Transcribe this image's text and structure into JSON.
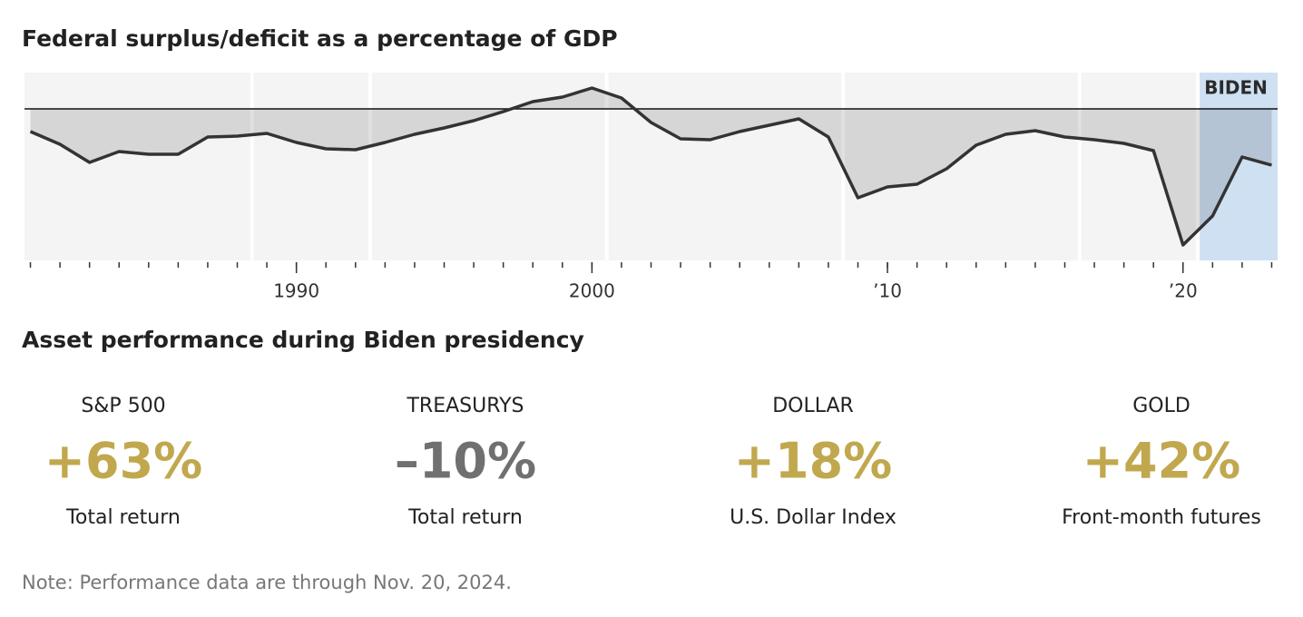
{
  "chart_data": {
    "type": "line",
    "title": "Federal surplus/deficit as a percentage of GDP",
    "x": [
      1981,
      1982,
      1983,
      1984,
      1985,
      1986,
      1987,
      1988,
      1989,
      1990,
      1991,
      1992,
      1993,
      1994,
      1995,
      1996,
      1997,
      1998,
      1999,
      2000,
      2001,
      2002,
      2003,
      2004,
      2005,
      2006,
      2007,
      2008,
      2009,
      2010,
      2011,
      2012,
      2013,
      2014,
      2015,
      2016,
      2017,
      2018,
      2019,
      2020,
      2021,
      2022,
      2023
    ],
    "values": [
      -2.5,
      -3.9,
      -5.9,
      -4.7,
      -5.0,
      -5.0,
      -3.1,
      -3.0,
      -2.7,
      -3.7,
      -4.4,
      -4.5,
      -3.7,
      -2.8,
      -2.1,
      -1.3,
      -0.3,
      0.8,
      1.3,
      2.3,
      1.2,
      -1.5,
      -3.3,
      -3.4,
      -2.5,
      -1.8,
      -1.1,
      -3.1,
      -9.8,
      -8.6,
      -8.3,
      -6.6,
      -4.0,
      -2.8,
      -2.4,
      -3.1,
      -3.4,
      -3.8,
      -4.6,
      -15.0,
      -11.8,
      -5.3,
      -6.2
    ],
    "color": "#333333",
    "area_color": "#000000",
    "area_opacity": 0.12,
    "background": "#f4f4f4",
    "xlim": [
      1980.8,
      2023.2
    ],
    "ylim": [
      -16.7,
      4
    ],
    "xticks": [
      1990,
      2000,
      {
        "value": 2010,
        "label": "’10"
      },
      {
        "value": 2020,
        "label": "’20"
      }
    ],
    "xminor_ticks": [
      1981,
      1982,
      1983,
      1984,
      1985,
      1986,
      1987,
      1988,
      1989,
      1990,
      1991,
      1992,
      1993,
      1994,
      1995,
      1996,
      1997,
      1998,
      1999,
      2000,
      2001,
      2002,
      2003,
      2004,
      2005,
      2006,
      2007,
      2008,
      2009,
      2010,
      2011,
      2012,
      2013,
      2014,
      2015,
      2016,
      2017,
      2018,
      2019,
      2020,
      2021,
      2022,
      2023
    ],
    "term_starts": [
      1988.5,
      1992.5,
      2000.5,
      2008.5,
      2016.5,
      2020.5
    ],
    "highlight": {
      "label": "BIDEN",
      "start": 2020.5,
      "color": "#cfe0f3"
    }
  },
  "panel": {
    "title": "Asset performance during Biden presidency",
    "stats": [
      {
        "label": "S&P 500",
        "value": "+63%",
        "note": "Total return",
        "color": "#c1a84e"
      },
      {
        "label": "TREASURYS",
        "value": "–10%",
        "note": "Total return",
        "color": "#707070"
      },
      {
        "label": "DOLLAR",
        "value": "+18%",
        "note": "U.S. Dollar Index",
        "color": "#c1a84e"
      },
      {
        "label": "GOLD",
        "value": "+42%",
        "note": "Front-month futures",
        "color": "#c1a84e"
      }
    ],
    "note": "Note: Performance data are through Nov. 20, 2024."
  }
}
